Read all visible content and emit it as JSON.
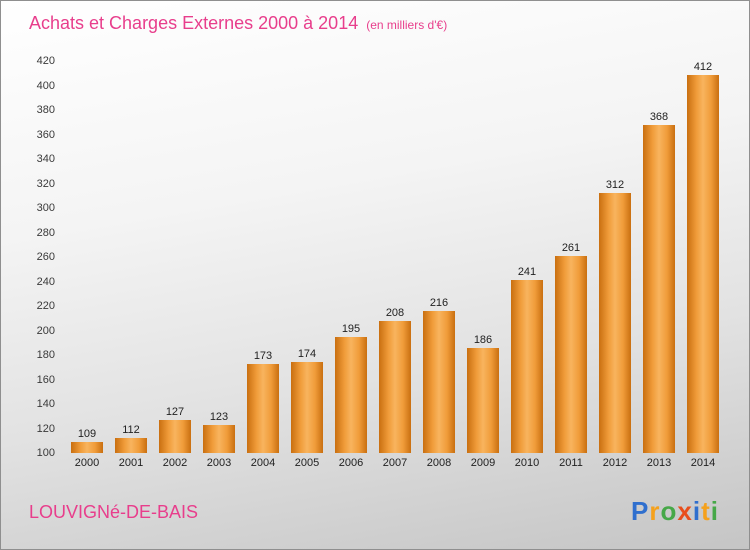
{
  "header": {
    "title": "Achats et Charges Externes 2000 à 2014",
    "subtitle": "(en milliers d'€)"
  },
  "footer": {
    "location": "LOUVIGNé-DE-BAIS",
    "logo_text": "Proxiti",
    "logo_letters": [
      {
        "ch": "P",
        "color": "#2f6fce"
      },
      {
        "ch": "r",
        "color": "#f5a11c"
      },
      {
        "ch": "o",
        "color": "#46a848"
      },
      {
        "ch": "x",
        "color": "#e84e1c"
      },
      {
        "ch": "i",
        "color": "#2f6fce"
      },
      {
        "ch": "t",
        "color": "#f5a11c"
      },
      {
        "ch": "i",
        "color": "#46a848"
      }
    ]
  },
  "colors": {
    "accent_pink": "#e83e8c",
    "bar_light": "#f8b45e",
    "bar_mid": "#f09c3a",
    "bar_dark": "#c96f10"
  },
  "chart_data": {
    "type": "bar",
    "title": "Achats et Charges Externes 2000 à 2014",
    "subtitle": "(en milliers d'€)",
    "xlabel": "",
    "ylabel": "",
    "categories": [
      "2000",
      "2001",
      "2002",
      "2003",
      "2004",
      "2005",
      "2006",
      "2007",
      "2008",
      "2009",
      "2010",
      "2011",
      "2012",
      "2013",
      "2014"
    ],
    "values": [
      109,
      112,
      127,
      123,
      173,
      174,
      195,
      208,
      216,
      186,
      241,
      261,
      312,
      368,
      412
    ],
    "ylim": [
      100,
      420
    ],
    "ytick_step": 20,
    "grid": false,
    "legend": "none",
    "bar_color": "orange gradient",
    "value_labels_shown": true
  }
}
